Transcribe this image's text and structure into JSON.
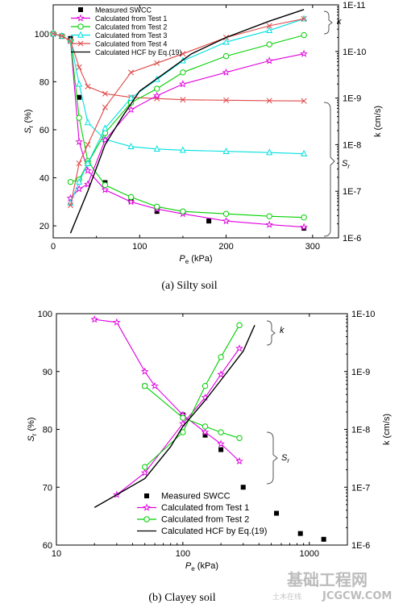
{
  "chart_data": [
    {
      "type": "line",
      "caption": "(a) Silty soil",
      "xlabel": "P",
      "xlabel_sub": "e",
      "xlabel_unit": " (kPa)",
      "ylabel": "S",
      "ylabel_sub": "r",
      "ylabel_unit": " (%)",
      "y2label": "k (cm/s)",
      "xlim": [
        0,
        330
      ],
      "ylim": [
        15,
        112
      ],
      "y2lim_log": [
        -6,
        -11
      ],
      "xticks": [
        "0",
        "100",
        "200",
        "300"
      ],
      "xtick_values": [
        0,
        100,
        200,
        300
      ],
      "yticks": [
        "20",
        "40",
        "60",
        "80",
        "100"
      ],
      "ytick_values": [
        20,
        40,
        60,
        80,
        100
      ],
      "y2ticks": [
        "1E-6",
        "1E-7",
        "1E-8",
        "1E-9",
        "1E-10",
        "1E-11"
      ],
      "y2tick_exps": [
        -6,
        -7,
        -8,
        -9,
        -10,
        -11
      ],
      "annotations": [
        "k",
        "S"
      ],
      "annotation_sub": "r",
      "legend": [
        {
          "label": "Measured SWCC",
          "color": "#000000",
          "marker": "square"
        },
        {
          "label": "Calculated  from Test 1",
          "color": "#e000e0",
          "marker": "star"
        },
        {
          "label": "Calculated  from Test 2",
          "color": "#00d000",
          "marker": "circle"
        },
        {
          "label": "Calculated  from Test 3",
          "color": "#00e0e0",
          "marker": "triangle"
        },
        {
          "label": "Calculated  from Test 4",
          "color": "#e04848",
          "marker": "cross"
        },
        {
          "label": "Calculated HCF by Eq.(19)",
          "color": "#000000",
          "marker": "none"
        }
      ],
      "series": [
        {
          "name": "Measured SWCC",
          "kind": "swcc",
          "x": [
            20,
            30,
            60,
            90,
            120,
            180,
            290
          ],
          "y": [
            98,
            73.5,
            38,
            30.5,
            26,
            22,
            19
          ]
        },
        {
          "name": "Calculated  from Test 1",
          "kind": "swcc",
          "x": [
            0,
            10,
            20,
            30,
            40,
            60,
            90,
            120,
            150,
            200,
            250,
            290
          ],
          "y": [
            100,
            99,
            97,
            55,
            43,
            35,
            30,
            27,
            25,
            22,
            20.5,
            19.5
          ]
        },
        {
          "name": "Calculated  from Test 2",
          "kind": "swcc",
          "x": [
            0,
            10,
            20,
            30,
            40,
            60,
            90,
            120,
            150,
            200,
            250,
            290
          ],
          "y": [
            100,
            99,
            97,
            65,
            47,
            37,
            32,
            28,
            26,
            25,
            24,
            23.5
          ]
        },
        {
          "name": "Calculated  from Test 3",
          "kind": "swcc",
          "x": [
            0,
            10,
            20,
            30,
            40,
            60,
            90,
            120,
            150,
            200,
            250,
            290
          ],
          "y": [
            100,
            99,
            97,
            79,
            63,
            56,
            53,
            52,
            51.5,
            51,
            50.5,
            50
          ]
        },
        {
          "name": "Calculated  from Test 4",
          "kind": "swcc",
          "x": [
            0,
            10,
            20,
            30,
            40,
            60,
            90,
            120,
            150,
            200,
            250,
            290
          ],
          "y": [
            100,
            99,
            97,
            86,
            78,
            75,
            73.5,
            73,
            72.5,
            72.3,
            72.1,
            72
          ]
        },
        {
          "name": "Calculated  from Test 1",
          "kind": "k",
          "x": [
            20,
            30,
            40,
            60,
            90,
            120,
            150,
            200,
            250,
            290
          ],
          "y": [
            -6.85,
            -7.05,
            -7.15,
            -8.1,
            -8.75,
            -9.05,
            -9.3,
            -9.55,
            -9.8,
            -9.95
          ]
        },
        {
          "name": "Calculated  from Test 2",
          "kind": "k",
          "x": [
            20,
            30,
            40,
            60,
            90,
            120,
            150,
            200,
            250,
            290
          ],
          "y": [
            -7.2,
            -7.25,
            -7.6,
            -8.25,
            -8.9,
            -9.2,
            -9.55,
            -9.9,
            -10.15,
            -10.35
          ]
        },
        {
          "name": "Calculated  from Test 3",
          "kind": "k",
          "x": [
            20,
            30,
            40,
            60,
            90,
            120,
            150,
            200,
            250,
            290
          ],
          "y": [
            -6.75,
            -7.2,
            -7.6,
            -8.35,
            -9.0,
            -9.4,
            -9.8,
            -10.2,
            -10.45,
            -10.7
          ]
        },
        {
          "name": "Calculated  from Test 4",
          "kind": "k",
          "x": [
            20,
            30,
            40,
            60,
            90,
            120,
            150,
            200,
            250,
            290
          ],
          "y": [
            -6.7,
            -7.6,
            -8.0,
            -8.8,
            -9.55,
            -9.75,
            -9.95,
            -10.3,
            -10.55,
            -10.7
          ]
        },
        {
          "name": "Calculated HCF by Eq.(19)",
          "kind": "k",
          "x": [
            20,
            40,
            60,
            80,
            100,
            130,
            160,
            200,
            250,
            290
          ],
          "y": [
            -6.1,
            -7.0,
            -8.0,
            -8.6,
            -9.15,
            -9.55,
            -9.95,
            -10.3,
            -10.65,
            -10.9
          ]
        }
      ]
    },
    {
      "type": "line",
      "caption": "(b) Clayey soil",
      "xscale": "log",
      "xlabel": "P",
      "xlabel_sub": "e",
      "xlabel_unit": " (kPa)",
      "ylabel": "S",
      "ylabel_sub": "r",
      "ylabel_unit": " (%)",
      "y2label": "k (cm/s)",
      "xlim": [
        10,
        2000
      ],
      "ylim": [
        60,
        100
      ],
      "y2lim_log": [
        -6,
        -10
      ],
      "xticks": [
        "10",
        "100",
        "1000"
      ],
      "xtick_values": [
        10,
        100,
        1000
      ],
      "yticks": [
        "60",
        "70",
        "80",
        "90",
        "100"
      ],
      "ytick_values": [
        60,
        70,
        80,
        90,
        100
      ],
      "y2ticks": [
        "1E-6",
        "1E-7",
        "1E-8",
        "1E-9",
        "1E-10"
      ],
      "y2tick_exps": [
        -6,
        -7,
        -8,
        -9,
        -10
      ],
      "annotations": [
        "k",
        "S"
      ],
      "annotation_sub": "r",
      "legend": [
        {
          "label": "Measured SWCC",
          "color": "#000000",
          "marker": "square"
        },
        {
          "label": "Calculated from Test 1",
          "color": "#e000e0",
          "marker": "star"
        },
        {
          "label": "Calculated from Test 2",
          "color": "#00d000",
          "marker": "circle"
        },
        {
          "label": "Calculated HCF by Eq.(19)",
          "color": "#000000",
          "marker": "none"
        }
      ],
      "series": [
        {
          "name": "Measured SWCC",
          "kind": "swcc",
          "x": [
            50,
            100,
            150,
            200,
            300,
            550,
            850,
            1300
          ],
          "y": [
            87.5,
            82.5,
            79,
            76.5,
            70,
            65.5,
            62,
            61
          ]
        },
        {
          "name": "Calculated from Test 1",
          "kind": "swcc",
          "x": [
            20,
            30,
            50,
            60,
            100,
            150,
            200,
            280
          ],
          "y": [
            99,
            98.5,
            90,
            87.5,
            82.5,
            79.5,
            77.5,
            74.5
          ]
        },
        {
          "name": "Calculated from Test 2",
          "kind": "swcc",
          "x": [
            50,
            100,
            150,
            200,
            280
          ],
          "y": [
            87.5,
            82,
            80.5,
            79.5,
            78.5
          ]
        },
        {
          "name": "Calculated from Test 1",
          "kind": "k",
          "x": [
            30,
            50,
            100,
            150,
            200,
            280
          ],
          "y": [
            -6.87,
            -7.25,
            -8.1,
            -8.55,
            -8.95,
            -9.4
          ]
        },
        {
          "name": "Calculated from Test 2",
          "kind": "k",
          "x": [
            50,
            100,
            150,
            200,
            280
          ],
          "y": [
            -7.35,
            -7.95,
            -8.75,
            -9.25,
            -9.8
          ]
        },
        {
          "name": "Calculated HCF by Eq.(19)",
          "kind": "k",
          "x": [
            20,
            50,
            80,
            100,
            150,
            200,
            300,
            370
          ],
          "y": [
            -6.65,
            -7.15,
            -7.7,
            -8.05,
            -8.5,
            -8.85,
            -9.35,
            -9.8
          ]
        }
      ]
    }
  ],
  "watermark": {
    "text": "基础工程网",
    "sub": "JCGCW.COM",
    "small": "土木在线"
  }
}
